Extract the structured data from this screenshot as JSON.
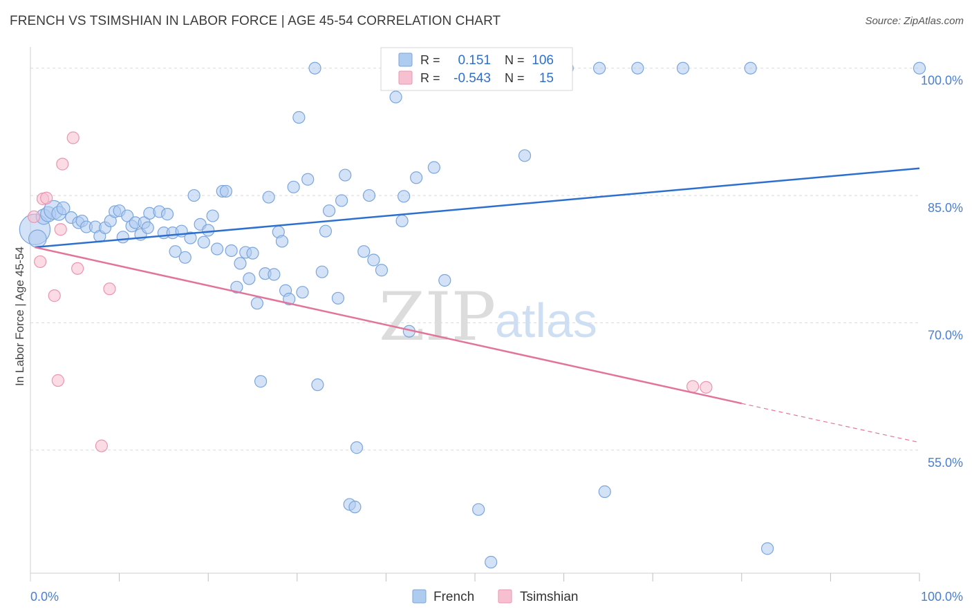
{
  "title": "FRENCH VS TSIMSHIAN IN LABOR FORCE | AGE 45-54 CORRELATION CHART",
  "source": "Source: ZipAtlas.com",
  "watermark": {
    "zip": "ZIP",
    "atlas": "atlas"
  },
  "colors": {
    "french_fill": "#aecbf0",
    "french_stroke": "#7aa6dc",
    "french_line": "#2d6fcf",
    "tsimshian_fill": "#f7c0d0",
    "tsimshian_stroke": "#ec94b1",
    "tsimshian_line": "#e2749a",
    "tick_label": "#4a7fd0",
    "grid": "#d9d9d9"
  },
  "legend": {
    "rows": [
      {
        "r_label": "R =",
        "r_value": "0.151",
        "n_label": "N =",
        "n_value": "106"
      },
      {
        "r_label": "R =",
        "r_value": "-0.543",
        "n_label": "N =",
        "n_value": "15"
      }
    ]
  },
  "chart_data": {
    "type": "scatter",
    "title": "FRENCH VS TSIMSHIAN IN LABOR FORCE | AGE 45-54 CORRELATION CHART",
    "xlabel": "",
    "ylabel": "In Labor Force | Age 45-54",
    "xlim": [
      0,
      100
    ],
    "ylim": [
      40.5,
      102.5
    ],
    "x_tick_labels": [
      "0.0%",
      "100.0%"
    ],
    "y_ticks": [
      {
        "value": 100,
        "label": "100.0%"
      },
      {
        "value": 85,
        "label": "85.0%"
      },
      {
        "value": 70,
        "label": "70.0%"
      },
      {
        "value": 55,
        "label": "55.0%"
      }
    ],
    "grid": true,
    "legend_position": "bottom",
    "series": [
      {
        "name": "French",
        "trend": {
          "x": [
            0.5,
            100
          ],
          "y": [
            78.9,
            88.2
          ]
        },
        "points": [
          {
            "x": 0.5,
            "y": 81.0,
            "s": 2.6
          },
          {
            "x": 0.8,
            "y": 79.9,
            "s": 1.5
          },
          {
            "x": 1.5,
            "y": 82.5,
            "s": 1.3
          },
          {
            "x": 2.0,
            "y": 82.8,
            "s": 1.3
          },
          {
            "x": 2.6,
            "y": 83.3,
            "s": 1.6
          },
          {
            "x": 3.2,
            "y": 82.9,
            "s": 1.2
          },
          {
            "x": 3.7,
            "y": 83.5,
            "s": 1.1
          },
          {
            "x": 4.6,
            "y": 82.4,
            "s": 1
          },
          {
            "x": 5.4,
            "y": 81.8,
            "s": 1
          },
          {
            "x": 5.8,
            "y": 82.0,
            "s": 1
          },
          {
            "x": 6.3,
            "y": 81.3,
            "s": 1
          },
          {
            "x": 7.3,
            "y": 81.3,
            "s": 1
          },
          {
            "x": 7.8,
            "y": 80.2,
            "s": 1
          },
          {
            "x": 8.4,
            "y": 81.2,
            "s": 1
          },
          {
            "x": 9.0,
            "y": 82.0,
            "s": 1
          },
          {
            "x": 9.5,
            "y": 83.1,
            "s": 1
          },
          {
            "x": 10.0,
            "y": 83.2,
            "s": 1
          },
          {
            "x": 10.4,
            "y": 80.1,
            "s": 1
          },
          {
            "x": 10.9,
            "y": 82.6,
            "s": 1
          },
          {
            "x": 11.4,
            "y": 81.4,
            "s": 1
          },
          {
            "x": 11.8,
            "y": 81.8,
            "s": 1
          },
          {
            "x": 12.4,
            "y": 80.4,
            "s": 1
          },
          {
            "x": 12.8,
            "y": 81.8,
            "s": 1
          },
          {
            "x": 13.2,
            "y": 81.2,
            "s": 1
          },
          {
            "x": 13.4,
            "y": 82.9,
            "s": 1
          },
          {
            "x": 14.5,
            "y": 83.1,
            "s": 1
          },
          {
            "x": 15.0,
            "y": 80.6,
            "s": 1
          },
          {
            "x": 15.4,
            "y": 82.8,
            "s": 1
          },
          {
            "x": 16.0,
            "y": 80.6,
            "s": 1
          },
          {
            "x": 16.3,
            "y": 78.4,
            "s": 1
          },
          {
            "x": 17.0,
            "y": 80.8,
            "s": 1
          },
          {
            "x": 17.4,
            "y": 77.7,
            "s": 1
          },
          {
            "x": 18.0,
            "y": 80.0,
            "s": 1
          },
          {
            "x": 18.4,
            "y": 85.0,
            "s": 1
          },
          {
            "x": 19.1,
            "y": 81.6,
            "s": 1
          },
          {
            "x": 19.5,
            "y": 79.5,
            "s": 1
          },
          {
            "x": 20.0,
            "y": 80.9,
            "s": 1
          },
          {
            "x": 20.5,
            "y": 82.6,
            "s": 1
          },
          {
            "x": 21.0,
            "y": 78.7,
            "s": 1
          },
          {
            "x": 21.6,
            "y": 85.5,
            "s": 1
          },
          {
            "x": 22.0,
            "y": 85.5,
            "s": 1
          },
          {
            "x": 22.6,
            "y": 78.5,
            "s": 1
          },
          {
            "x": 23.2,
            "y": 74.2,
            "s": 1
          },
          {
            "x": 23.6,
            "y": 77.0,
            "s": 1
          },
          {
            "x": 24.2,
            "y": 78.3,
            "s": 1
          },
          {
            "x": 24.6,
            "y": 75.2,
            "s": 1
          },
          {
            "x": 25.0,
            "y": 78.2,
            "s": 1
          },
          {
            "x": 25.5,
            "y": 72.3,
            "s": 1
          },
          {
            "x": 25.9,
            "y": 63.1,
            "s": 1
          },
          {
            "x": 26.4,
            "y": 75.8,
            "s": 1
          },
          {
            "x": 26.8,
            "y": 84.8,
            "s": 1
          },
          {
            "x": 27.4,
            "y": 75.7,
            "s": 1
          },
          {
            "x": 27.9,
            "y": 80.7,
            "s": 1
          },
          {
            "x": 28.3,
            "y": 79.6,
            "s": 1
          },
          {
            "x": 28.7,
            "y": 73.8,
            "s": 1
          },
          {
            "x": 29.1,
            "y": 72.8,
            "s": 1
          },
          {
            "x": 29.6,
            "y": 86.0,
            "s": 1
          },
          {
            "x": 30.2,
            "y": 94.2,
            "s": 1
          },
          {
            "x": 30.6,
            "y": 73.6,
            "s": 1
          },
          {
            "x": 31.2,
            "y": 86.9,
            "s": 1
          },
          {
            "x": 32.0,
            "y": 100.0,
            "s": 1
          },
          {
            "x": 32.3,
            "y": 62.7,
            "s": 1
          },
          {
            "x": 32.8,
            "y": 76.0,
            "s": 1
          },
          {
            "x": 33.2,
            "y": 80.8,
            "s": 1
          },
          {
            "x": 33.6,
            "y": 83.2,
            "s": 1
          },
          {
            "x": 34.6,
            "y": 72.9,
            "s": 1
          },
          {
            "x": 35.0,
            "y": 84.4,
            "s": 1
          },
          {
            "x": 35.4,
            "y": 87.4,
            "s": 1
          },
          {
            "x": 35.9,
            "y": 48.6,
            "s": 1
          },
          {
            "x": 36.5,
            "y": 48.3,
            "s": 1
          },
          {
            "x": 36.7,
            "y": 55.3,
            "s": 1
          },
          {
            "x": 37.5,
            "y": 78.4,
            "s": 1
          },
          {
            "x": 38.1,
            "y": 85.0,
            "s": 1
          },
          {
            "x": 38.6,
            "y": 77.4,
            "s": 1
          },
          {
            "x": 39.5,
            "y": 76.2,
            "s": 1
          },
          {
            "x": 40.5,
            "y": 100.0,
            "s": 1
          },
          {
            "x": 41.1,
            "y": 96.6,
            "s": 1
          },
          {
            "x": 41.8,
            "y": 82.0,
            "s": 1
          },
          {
            "x": 42.0,
            "y": 84.9,
            "s": 1
          },
          {
            "x": 42.6,
            "y": 69.0,
            "s": 1
          },
          {
            "x": 43.4,
            "y": 87.1,
            "s": 1
          },
          {
            "x": 45.0,
            "y": 100.0,
            "s": 1
          },
          {
            "x": 45.4,
            "y": 88.3,
            "s": 1
          },
          {
            "x": 46.6,
            "y": 75.0,
            "s": 1
          },
          {
            "x": 48.5,
            "y": 100.0,
            "s": 1
          },
          {
            "x": 50.4,
            "y": 48.0,
            "s": 1
          },
          {
            "x": 51.8,
            "y": 41.8,
            "s": 1
          },
          {
            "x": 53.2,
            "y": 100.0,
            "s": 1
          },
          {
            "x": 55.6,
            "y": 89.7,
            "s": 1
          },
          {
            "x": 58.3,
            "y": 100.0,
            "s": 1
          },
          {
            "x": 60.4,
            "y": 100.0,
            "s": 1
          },
          {
            "x": 64.0,
            "y": 100.0,
            "s": 1
          },
          {
            "x": 64.6,
            "y": 50.1,
            "s": 1
          },
          {
            "x": 68.3,
            "y": 100.0,
            "s": 1
          },
          {
            "x": 73.4,
            "y": 100.0,
            "s": 1
          },
          {
            "x": 81.0,
            "y": 100.0,
            "s": 1
          },
          {
            "x": 82.9,
            "y": 43.4,
            "s": 1
          },
          {
            "x": 100.0,
            "y": 100.0,
            "s": 1
          }
        ]
      },
      {
        "name": "Tsimshian",
        "trend": {
          "x": [
            0.5,
            80
          ],
          "y": [
            78.9,
            60.5
          ]
        },
        "trend_dashed": {
          "x": [
            80,
            100
          ],
          "y": [
            60.5,
            55.9
          ]
        },
        "points": [
          {
            "x": 0.4,
            "y": 82.5,
            "s": 1
          },
          {
            "x": 1.1,
            "y": 77.2,
            "s": 1
          },
          {
            "x": 1.4,
            "y": 84.6,
            "s": 1
          },
          {
            "x": 1.8,
            "y": 84.7,
            "s": 1
          },
          {
            "x": 2.7,
            "y": 73.2,
            "s": 1
          },
          {
            "x": 3.1,
            "y": 63.2,
            "s": 1
          },
          {
            "x": 3.4,
            "y": 81.0,
            "s": 1
          },
          {
            "x": 3.6,
            "y": 88.7,
            "s": 1
          },
          {
            "x": 4.8,
            "y": 91.8,
            "s": 1
          },
          {
            "x": 5.3,
            "y": 76.4,
            "s": 1
          },
          {
            "x": 8.0,
            "y": 55.5,
            "s": 1
          },
          {
            "x": 8.9,
            "y": 74.0,
            "s": 1
          },
          {
            "x": 74.5,
            "y": 62.5,
            "s": 1
          },
          {
            "x": 76.0,
            "y": 62.4,
            "s": 1
          }
        ]
      }
    ]
  }
}
